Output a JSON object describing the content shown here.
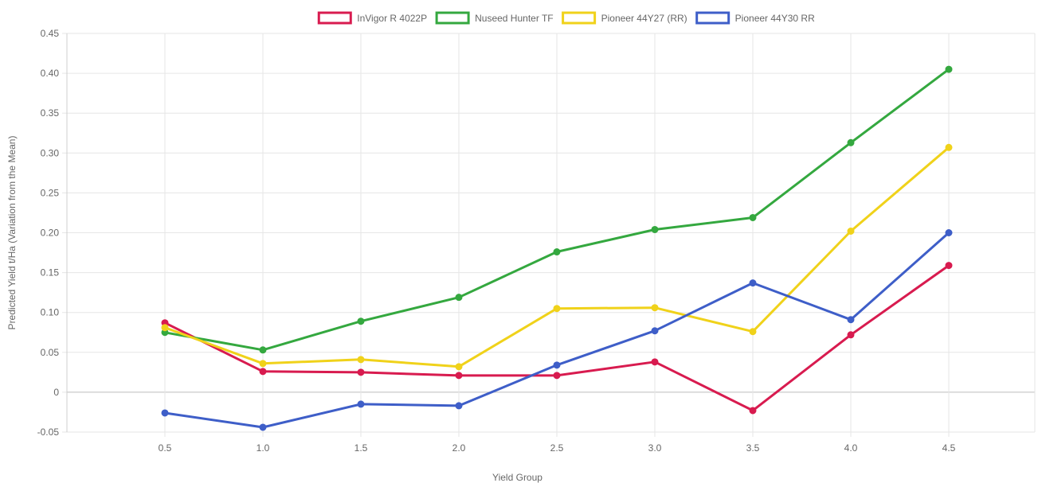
{
  "chart_data": {
    "type": "line",
    "title": "",
    "xlabel": "Yield Group",
    "ylabel": "Predicted Yield t/Ha (Variation from the Mean)",
    "categories": [
      "0.5",
      "1.0",
      "1.5",
      "2.0",
      "2.5",
      "3.0",
      "3.5",
      "4.0",
      "4.5"
    ],
    "ylim": [
      -0.05,
      0.45
    ],
    "yticks": [
      "-0.05",
      "0",
      "0.05",
      "0.10",
      "0.15",
      "0.20",
      "0.25",
      "0.30",
      "0.35",
      "0.40",
      "0.45"
    ],
    "grid": true,
    "legend_position": "top",
    "series": [
      {
        "name": "InVigor R 4022P",
        "color": "#d81b4f",
        "values": [
          0.087,
          0.026,
          0.025,
          0.021,
          0.021,
          0.038,
          -0.023,
          0.072,
          0.159
        ]
      },
      {
        "name": "Nuseed Hunter TF",
        "color": "#34a83f",
        "values": [
          0.075,
          0.053,
          0.089,
          0.119,
          0.176,
          0.204,
          0.219,
          0.313,
          0.405
        ]
      },
      {
        "name": "Pioneer 44Y27 (RR)",
        "color": "#f0d21a",
        "values": [
          0.081,
          0.036,
          0.041,
          0.032,
          0.105,
          0.106,
          0.076,
          0.202,
          0.307
        ]
      },
      {
        "name": "Pioneer 44Y30 RR",
        "color": "#3e5ec8",
        "values": [
          -0.026,
          -0.044,
          -0.015,
          -0.017,
          0.034,
          0.077,
          0.137,
          0.091,
          0.2
        ]
      }
    ]
  }
}
